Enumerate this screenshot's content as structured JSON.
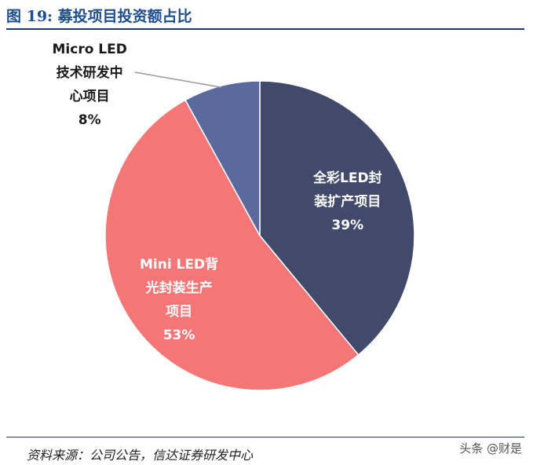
{
  "figure": {
    "title": "图 19:  募投项目投资额占比",
    "source": "资料来源：公司公告，信达证券研发中心",
    "watermark": "头条 @财是"
  },
  "chart_data": {
    "type": "pie",
    "slices": [
      {
        "label_lines": [
          "全彩LED封",
          "装扩产项目"
        ],
        "pct_label": "39%",
        "value": 39,
        "color": "#424a6b",
        "text": "light"
      },
      {
        "label_lines": [
          "Mini LED背",
          "光封装生产",
          "项目"
        ],
        "pct_label": "53%",
        "value": 53,
        "color": "#f47676",
        "text": "light"
      },
      {
        "label_lines": [
          "Micro LED",
          "技术研发中",
          "心项目"
        ],
        "pct_label": "8%",
        "value": 8,
        "color": "#5a6a9c",
        "text": "dark"
      }
    ]
  }
}
